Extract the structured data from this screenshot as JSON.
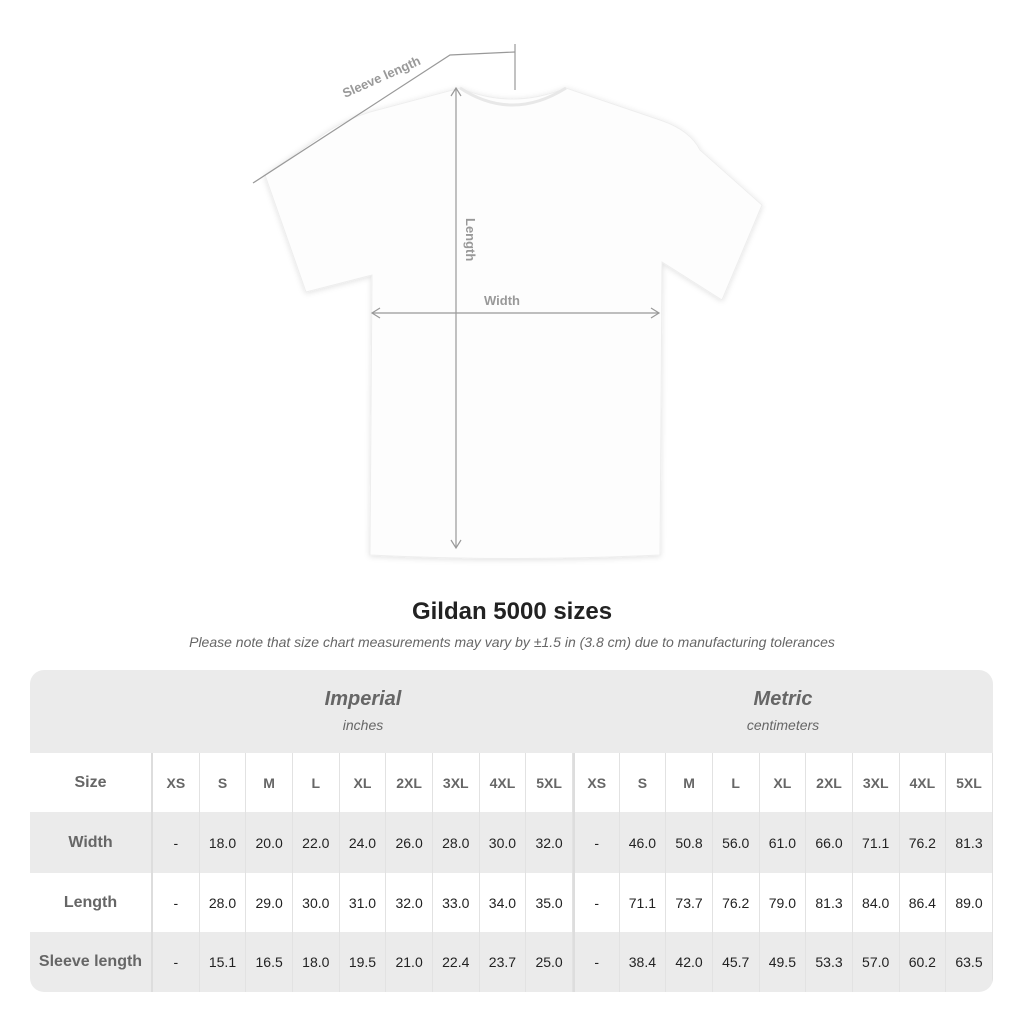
{
  "diagram": {
    "sleeve_label": "Sleeve length",
    "length_label": "Length",
    "width_label": "Width"
  },
  "title": "Gildan 5000 sizes",
  "note": "Please note that size chart measurements may vary by ±1.5 in (3.8 cm) due to manufacturing tolerances",
  "imperial": {
    "name": "Imperial",
    "unit": "inches"
  },
  "metric": {
    "name": "Metric",
    "unit": "centimeters"
  },
  "header": {
    "label": "Size",
    "sizes": [
      "XS",
      "S",
      "M",
      "L",
      "XL",
      "2XL",
      "3XL",
      "4XL",
      "5XL"
    ]
  },
  "rows": [
    {
      "label": "Width",
      "imperial": [
        "-",
        "18.0",
        "20.0",
        "22.0",
        "24.0",
        "26.0",
        "28.0",
        "30.0",
        "32.0"
      ],
      "metric": [
        "-",
        "46.0",
        "50.8",
        "56.0",
        "61.0",
        "66.0",
        "71.1",
        "76.2",
        "81.3"
      ]
    },
    {
      "label": "Length",
      "imperial": [
        "-",
        "28.0",
        "29.0",
        "30.0",
        "31.0",
        "32.0",
        "33.0",
        "34.0",
        "35.0"
      ],
      "metric": [
        "-",
        "71.1",
        "73.7",
        "76.2",
        "79.0",
        "81.3",
        "84.0",
        "86.4",
        "89.0"
      ]
    },
    {
      "label": "Sleeve length",
      "imperial": [
        "-",
        "15.1",
        "16.5",
        "18.0",
        "19.5",
        "21.0",
        "22.4",
        "23.7",
        "25.0"
      ],
      "metric": [
        "-",
        "38.4",
        "42.0",
        "45.7",
        "49.5",
        "53.3",
        "57.0",
        "60.2",
        "63.5"
      ]
    }
  ]
}
